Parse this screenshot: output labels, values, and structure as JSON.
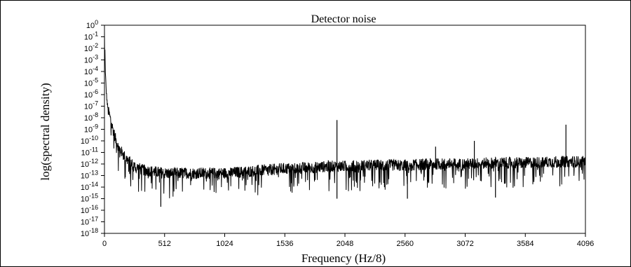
{
  "chart_data": {
    "type": "line",
    "title": "Detector noise",
    "xlabel": "Frequency (Hz/8)",
    "ylabel": "log(spectral density)",
    "xlim": [
      0,
      4096
    ],
    "ylim": [
      -18,
      0
    ],
    "y_scale": "log",
    "grid": false,
    "legend": "none",
    "xticks": [
      0,
      512,
      1024,
      1536,
      2048,
      2560,
      3072,
      3584,
      4096
    ],
    "xtick_labels": [
      "0",
      "512",
      "1024",
      "1536",
      "2048",
      "2560",
      "3072",
      "3584",
      "4096"
    ],
    "yticks": [
      0,
      -1,
      -2,
      -3,
      -4,
      -5,
      -6,
      -7,
      -8,
      -9,
      -10,
      -11,
      -12,
      -13,
      -14,
      -15,
      -16,
      -17,
      -18
    ],
    "ytick_base": "10",
    "ytick_exponents": [
      "0",
      "-1",
      "-2",
      "-3",
      "-4",
      "-5",
      "-6",
      "-7",
      "-8",
      "-9",
      "-10",
      "-11",
      "-12",
      "-13",
      "-14",
      "-15",
      "-16",
      "-17",
      "-18"
    ],
    "series": [
      {
        "color": "#000000",
        "x": [
          0,
          4,
          8,
          16,
          24,
          32,
          48,
          64,
          80,
          96,
          112,
          128,
          160,
          192,
          224,
          256,
          320,
          384,
          448,
          512,
          640,
          768,
          1024,
          1280,
          1536,
          1792,
          1900,
          2048,
          2304,
          2560,
          2816,
          3072,
          3328,
          3584,
          3840,
          4096
        ],
        "y": [
          -0.6,
          -2.2,
          -4.2,
          -5.8,
          -6.8,
          -7.4,
          -8.0,
          -8.7,
          -9.3,
          -9.9,
          -10.3,
          -10.7,
          -11.2,
          -11.6,
          -11.9,
          -12.2,
          -12.5,
          -12.6,
          -12.7,
          -12.8,
          -12.8,
          -12.8,
          -12.8,
          -12.6,
          -12.4,
          -12.3,
          -12.2,
          -12.2,
          -12.1,
          -12.1,
          -12.0,
          -12.0,
          -11.9,
          -11.9,
          -11.8,
          -11.8
        ]
      }
    ],
    "spikes": [
      {
        "x": 1980,
        "y": -8.2
      },
      {
        "x": 2820,
        "y": -10.5
      },
      {
        "x": 3150,
        "y": -10.0
      },
      {
        "x": 3930,
        "y": -8.6
      },
      {
        "x": 1980,
        "y": -15.0
      },
      {
        "x": 2580,
        "y": -15.0
      },
      {
        "x": 480,
        "y": -15.7
      },
      {
        "x": 3330,
        "y": -14.9
      }
    ]
  }
}
